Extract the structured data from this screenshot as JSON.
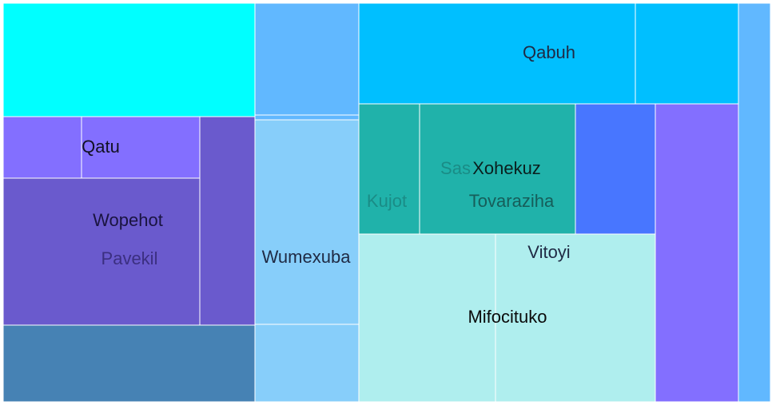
{
  "chart_data": {
    "type": "treemap",
    "title": "",
    "items": [
      {
        "label": "",
        "color": "#00ffff"
      },
      {
        "label": "",
        "color": "#61b8ff"
      },
      {
        "label": "",
        "color": "#61b8ff"
      },
      {
        "label": "Qabuh",
        "color": "#00bfff",
        "text_color": "#1f2a44"
      },
      {
        "label": "",
        "color": "#00bfff"
      },
      {
        "label": "",
        "color": "#61b8ff"
      },
      {
        "label": "",
        "color": "#836fff"
      },
      {
        "label": "Qatu",
        "color": "#836fff",
        "text_color": "#111122"
      },
      {
        "label": "",
        "color": "#6a5acd"
      },
      {
        "label": "Wopehot",
        "color": "#6a5acd",
        "text_color": "#1a1440"
      },
      {
        "label": "Pavekil",
        "color": "#6a5acd",
        "text_color": "#3b2f80"
      },
      {
        "label": "",
        "color": "#4682b4"
      },
      {
        "label": "Wumexuba",
        "color": "#87cefa",
        "text_color": "#1f2a44"
      },
      {
        "label": "",
        "color": "#87cefa"
      },
      {
        "label": "Kujot",
        "color": "#20b2aa",
        "text_color": "#1a8c86"
      },
      {
        "label": "Sas",
        "color": "#20b2aa",
        "text_color": "#1a8c86"
      },
      {
        "label": "Xohekuz",
        "color": "#20b2aa",
        "text_color": "#0a1f1e"
      },
      {
        "label": "Tovaraziha",
        "color": "#20b2aa",
        "text_color": "#165e5a"
      },
      {
        "label": "",
        "color": "#4876ff"
      },
      {
        "label": "",
        "color": "#836fff"
      },
      {
        "label": "Vitoyi",
        "color": "#afeeee",
        "text_color": "#1f2a44"
      },
      {
        "label": "Mifocituko",
        "color": "#afeeee",
        "text_color": "#0a0a0a"
      },
      {
        "label": "",
        "color": "#afeeee"
      }
    ]
  }
}
